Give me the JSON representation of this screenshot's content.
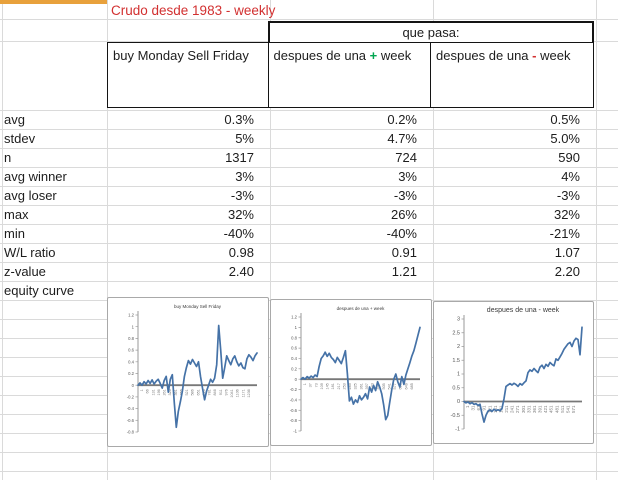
{
  "colors": {
    "accent_orange": "#e8a13c",
    "title_red": "#d23030",
    "plus_green": "#00a550",
    "minus_red": "#d23030",
    "chart_line_blue": "#4572a7",
    "zero_line_gray": "#787878",
    "gridline_gray": "#dadada"
  },
  "sheet": {
    "title": "Crudo desde 1983 - weekly",
    "que_pasa": "que pasa:",
    "columns": [
      {
        "label": "buy Monday Sell Friday"
      },
      {
        "pre": "despues de una ",
        "sign": "+",
        "post": " week"
      },
      {
        "pre": "despues de una ",
        "sign": "-",
        "post": " week"
      }
    ],
    "rows": [
      {
        "label": "avg",
        "values": [
          "0.3%",
          "0.2%",
          "0.5%"
        ]
      },
      {
        "label": "stdev",
        "values": [
          "5%",
          "4.7%",
          "5.0%"
        ]
      },
      {
        "label": "n",
        "values": [
          "1317",
          "724",
          "590"
        ]
      },
      {
        "label": "avg winner",
        "values": [
          "3%",
          "3%",
          "4%"
        ]
      },
      {
        "label": "avg loser",
        "values": [
          "-3%",
          "-3%",
          "-3%"
        ]
      },
      {
        "label": "max",
        "values": [
          "32%",
          "26%",
          "32%"
        ]
      },
      {
        "label": "min",
        "values": [
          "-40%",
          "-40%",
          "-21%"
        ]
      },
      {
        "label": "W/L ratio",
        "values": [
          "0.98",
          "0.91",
          "1.07"
        ]
      },
      {
        "label": "z-value",
        "values": [
          "2.40",
          "1.21",
          "2.20"
        ]
      },
      {
        "label": "equity curve",
        "values": [
          "",
          "",
          ""
        ]
      }
    ]
  },
  "chart_data": [
    {
      "type": "line",
      "title": "buy Monday Sell Friday",
      "ylabel": "",
      "xlabel": "",
      "ylim": [
        -0.8,
        1.2
      ],
      "y_ticks": [
        "1.2",
        "1",
        "0.8",
        "0.6",
        "0.4",
        "0.2",
        "0",
        "-0.2",
        "-0.4",
        "-0.6",
        "-0.8"
      ],
      "x_ticks": [
        "1",
        "66",
        "131",
        "196",
        "261",
        "326",
        "391",
        "456",
        "521",
        "586",
        "651",
        "716",
        "781",
        "846",
        "911",
        "976",
        "1041",
        "1106",
        "1171",
        "1236"
      ],
      "line_color": "#4572a7",
      "values": [
        0.0,
        0.04,
        0.0,
        0.06,
        0.02,
        0.08,
        0.03,
        0.09,
        0.02,
        0.07,
        0.1,
        0.03,
        -0.05,
        0.08,
        0.15,
        -0.12,
        0.1,
        0.18,
        -0.3,
        -0.72,
        -0.45,
        -0.28,
        -0.1,
        0.15,
        0.3,
        0.42,
        0.36,
        0.44,
        0.38,
        0.32,
        0.4,
        0.15,
        -0.05,
        -0.25,
        -0.1,
        0.0,
        0.1,
        0.05,
        0.12,
        0.35,
        1.02,
        0.6,
        0.12,
        0.3,
        0.5,
        0.42,
        0.35,
        0.45,
        0.5,
        0.4,
        0.33,
        0.38,
        0.3,
        0.28,
        0.45,
        0.52,
        0.48,
        0.42,
        0.5,
        0.55
      ]
    },
    {
      "type": "line",
      "title": "despues de una + week",
      "ylabel": "",
      "xlabel": "",
      "ylim": [
        -1.0,
        1.2
      ],
      "y_ticks": [
        "1.2",
        "1",
        "0.8",
        "0.6",
        "0.4",
        "0.2",
        "0",
        "-0.2",
        "-0.4",
        "-0.6",
        "-0.8",
        "-1"
      ],
      "x_ticks": [
        "1",
        "37",
        "73",
        "109",
        "145",
        "181",
        "217",
        "253",
        "289",
        "325",
        "361",
        "397",
        "433",
        "469",
        "505",
        "541",
        "577",
        "613",
        "649",
        "685"
      ],
      "line_color": "#4572a7",
      "values": [
        0.0,
        0.03,
        0.0,
        0.05,
        0.02,
        0.06,
        0.03,
        0.08,
        0.05,
        0.25,
        0.4,
        0.45,
        0.52,
        0.44,
        0.5,
        0.42,
        0.38,
        0.32,
        0.42,
        0.36,
        0.3,
        0.42,
        0.55,
        0.1,
        -0.42,
        -0.35,
        -0.48,
        -0.4,
        -0.45,
        -0.32,
        -0.4,
        -0.35,
        -0.28,
        -0.38,
        -0.15,
        -0.25,
        -0.12,
        -0.22,
        -0.05,
        -0.15,
        -0.28,
        -0.5,
        -0.78,
        -0.7,
        -0.45,
        -0.2,
        0.0,
        0.1,
        -0.05,
        -0.15,
        0.05,
        -0.1,
        0.08,
        0.2,
        0.32,
        0.45,
        0.55,
        0.7,
        0.85,
        1.0
      ]
    },
    {
      "type": "line",
      "title": "despues de una - week",
      "ylabel": "",
      "xlabel": "",
      "ylim": [
        -1.0,
        3.0
      ],
      "y_ticks": [
        "3",
        "2.5",
        "2",
        "1.5",
        "1",
        "0.5",
        "0",
        "-0.5",
        "-1"
      ],
      "x_ticks": [
        "1",
        "31",
        "61",
        "91",
        "121",
        "151",
        "181",
        "211",
        "241",
        "271",
        "301",
        "331",
        "361",
        "391",
        "421",
        "451",
        "481",
        "511",
        "541",
        "571"
      ],
      "line_color": "#4572a7",
      "values": [
        0.0,
        -0.05,
        -0.02,
        -0.08,
        -0.04,
        -0.1,
        -0.08,
        -0.14,
        -0.1,
        -0.45,
        -0.75,
        -0.5,
        -0.35,
        -0.3,
        -0.36,
        -0.28,
        -0.33,
        -0.3,
        -0.34,
        -0.25,
        0.1,
        0.55,
        0.6,
        0.65,
        0.6,
        0.66,
        0.62,
        0.55,
        0.65,
        0.6,
        0.68,
        0.75,
        1.05,
        1.15,
        1.1,
        1.2,
        1.12,
        1.05,
        1.25,
        1.32,
        1.2,
        1.35,
        1.28,
        1.42,
        1.35,
        1.3,
        1.55,
        1.5,
        1.62,
        1.75,
        1.9,
        2.0,
        2.1,
        2.15,
        2.0,
        2.2,
        2.3,
        2.25,
        1.7,
        2.7
      ]
    }
  ]
}
